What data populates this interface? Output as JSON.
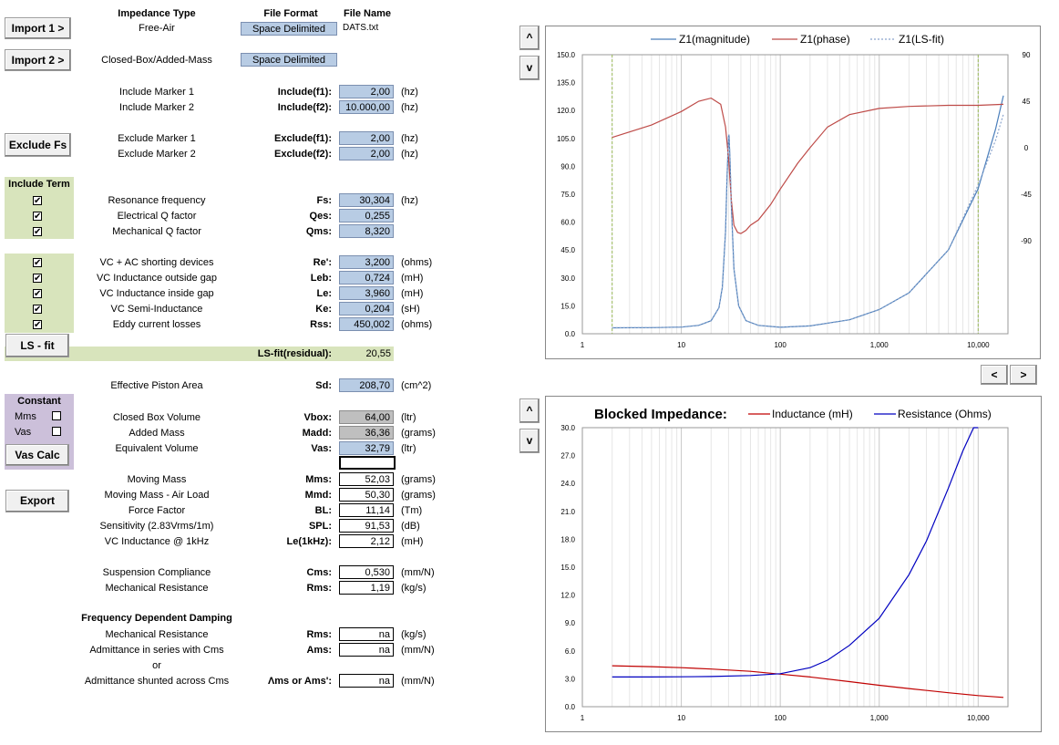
{
  "headers": {
    "impedance_type": "Impedance Type",
    "file_format": "File Format",
    "file_name": "File Name"
  },
  "import1": {
    "button": "Import 1 >",
    "type": "Free-Air",
    "format": "Space Delimited",
    "file": "DATS.txt"
  },
  "import2": {
    "button": "Import 2 >",
    "type": "Closed-Box/Added-Mass",
    "format": "Space Delimited"
  },
  "include_markers": [
    {
      "label": "Include Marker 1",
      "key": "Include(f1):",
      "value": "2,00",
      "unit": "(hz)"
    },
    {
      "label": "Include Marker 2",
      "key": "Include(f2):",
      "value": "10.000,00",
      "unit": "(hz)"
    }
  ],
  "exclude_button": "Exclude Fs",
  "exclude_markers": [
    {
      "label": "Exclude Marker 1",
      "key": "Exclude(f1):",
      "value": "2,00",
      "unit": "(hz)"
    },
    {
      "label": "Exclude Marker 2",
      "key": "Exclude(f2):",
      "value": "2,00",
      "unit": "(hz)"
    }
  ],
  "include_term_title": "Include Term",
  "params_a": [
    {
      "checked": true,
      "label": "Resonance frequency",
      "key": "Fs:",
      "value": "30,304",
      "unit": "(hz)"
    },
    {
      "checked": true,
      "label": "Electrical Q factor",
      "key": "Qes:",
      "value": "0,255",
      "unit": ""
    },
    {
      "checked": true,
      "label": "Mechanical Q factor",
      "key": "Qms:",
      "value": "8,320",
      "unit": ""
    }
  ],
  "params_b": [
    {
      "checked": true,
      "label": "VC + AC shorting devices",
      "key": "Re':",
      "value": "3,200",
      "unit": "(ohms)"
    },
    {
      "checked": true,
      "label": "VC Inductance outside gap",
      "key": "Leb:",
      "value": "0,724",
      "unit": "(mH)"
    },
    {
      "checked": true,
      "label": "VC Inductance inside gap",
      "key": "Le:",
      "value": "3,960",
      "unit": "(mH)"
    },
    {
      "checked": true,
      "label": "VC Semi-Inductance",
      "key": "Ke:",
      "value": "0,204",
      "unit": "(sH)"
    },
    {
      "checked": true,
      "label": "Eddy current losses",
      "key": "Rss:",
      "value": "450,002",
      "unit": "(ohms)"
    }
  ],
  "lsfit": {
    "button": "LS - fit",
    "key": "LS-fit(residual):",
    "value": "20,55"
  },
  "piston": {
    "label": "Effective Piston Area",
    "key": "Sd:",
    "value": "208,70",
    "unit": "(cm^2)"
  },
  "constant": {
    "title": "Constant",
    "mms": "Mms",
    "vas": "Vas",
    "button": "Vas Calc"
  },
  "box": [
    {
      "label": "Closed Box Volume",
      "key": "Vbox:",
      "value": "64,00",
      "unit": "(ltr)"
    },
    {
      "label": "Added Mass",
      "key": "Madd:",
      "value": "36,36",
      "unit": "(grams)"
    },
    {
      "label": "Equivalent Volume",
      "key": "Vas:",
      "value": "32,79",
      "unit": "(ltr)"
    }
  ],
  "export_button": "Export",
  "results": [
    {
      "label": "Moving Mass",
      "key": "Mms:",
      "value": "52,03",
      "unit": "(grams)"
    },
    {
      "label": "Moving Mass - Air Load",
      "key": "Mmd:",
      "value": "50,30",
      "unit": "(grams)"
    },
    {
      "label": "Force Factor",
      "key": "BL:",
      "value": "11,14",
      "unit": "(Tm)"
    },
    {
      "label": "Sensitivity (2.83Vrms/1m)",
      "key": "SPL:",
      "value": "91,53",
      "unit": "(dB)"
    },
    {
      "label": "VC Inductance @ 1kHz",
      "key": "Le(1kHz):",
      "value": "2,12",
      "unit": "(mH)"
    }
  ],
  "compliance": [
    {
      "label": "Suspension Compliance",
      "key": "Cms:",
      "value": "0,530",
      "unit": "(mm/N)"
    },
    {
      "label": "Mechanical Resistance",
      "key": "Rms:",
      "value": "1,19",
      "unit": "(kg/s)"
    }
  ],
  "damping": {
    "title": "Frequency Dependent Damping",
    "rows": [
      {
        "label": "Mechanical Resistance",
        "key": "Rms:",
        "value": "na",
        "unit": "(kg/s)"
      },
      {
        "label": "Admittance in series with Cms",
        "key": "Ams:",
        "value": "na",
        "unit": "(mm/N)"
      },
      {
        "label": "or",
        "key": "",
        "value": "",
        "unit": ""
      },
      {
        "label": "Admittance shunted across Cms",
        "key": "Λms or Ams':",
        "value": "na",
        "unit": "(mm/N)"
      }
    ]
  },
  "nav": {
    "up": "^",
    "down": "v",
    "left": "<",
    "right": ">"
  },
  "colors": {
    "magnitude": "#4a7ebb",
    "phase": "#be4b48",
    "inductance": "#c00000",
    "resistance": "#0000c0",
    "marker": "#9bbb59"
  },
  "chart_data": [
    {
      "type": "line",
      "title": "",
      "x_scale": "log",
      "xlim": [
        1,
        20000
      ],
      "x_ticks": [
        "1",
        "10",
        "100",
        "1,000",
        "10,000"
      ],
      "ylim": [
        0,
        150
      ],
      "y_ticks": [
        "0.0",
        "15.0",
        "30.0",
        "45.0",
        "60.0",
        "75.0",
        "90.0",
        "105.0",
        "120.0",
        "135.0",
        "150.0"
      ],
      "y2lim": [
        -180,
        90
      ],
      "y2_ticks": [
        "90",
        "45",
        "0",
        "-45",
        "-90"
      ],
      "legend": "top",
      "markers_x": [
        2,
        10000
      ],
      "series": [
        {
          "name": "Z1(magnitude)",
          "axis": "left",
          "x": [
            2,
            5,
            10,
            15,
            20,
            24,
            26,
            28,
            29,
            30,
            30.3,
            31,
            32,
            34,
            38,
            45,
            60,
            100,
            200,
            500,
            1000,
            2000,
            5000,
            10000,
            15000,
            18000
          ],
          "y": [
            3.2,
            3.3,
            3.6,
            4.5,
            7,
            14,
            25,
            55,
            85,
            106,
            107,
            95,
            70,
            35,
            15,
            7,
            4.5,
            3.5,
            4.2,
            7.5,
            13,
            22,
            45,
            78,
            110,
            128
          ]
        },
        {
          "name": "Z1(phase)",
          "axis": "right",
          "x": [
            2,
            5,
            10,
            15,
            20,
            25,
            28,
            30,
            32,
            34,
            37,
            40,
            45,
            50,
            60,
            80,
            100,
            150,
            200,
            300,
            500,
            1000,
            2000,
            5000,
            10000,
            18000
          ],
          "y": [
            10,
            22,
            35,
            45,
            48,
            42,
            20,
            -10,
            -50,
            -75,
            -82,
            -83,
            -80,
            -75,
            -70,
            -55,
            -40,
            -15,
            0,
            20,
            32,
            38,
            40,
            41,
            41,
            42
          ]
        },
        {
          "name": "Z1(LS-fit)",
          "axis": "left",
          "x": [
            2,
            5,
            10,
            15,
            20,
            24,
            26,
            28,
            29,
            30,
            30.3,
            31,
            32,
            34,
            38,
            45,
            60,
            100,
            200,
            500,
            1000,
            2000,
            5000,
            10000,
            15000,
            18000
          ],
          "y": [
            3.2,
            3.3,
            3.6,
            4.5,
            7,
            14,
            25,
            55,
            85,
            106,
            107,
            95,
            70,
            35,
            15,
            7,
            4.5,
            3.5,
            4.2,
            7.5,
            13,
            22,
            45,
            80,
            104,
            118
          ]
        }
      ]
    },
    {
      "type": "line",
      "title": "Blocked Impedance:",
      "x_scale": "log",
      "xlim": [
        1,
        20000
      ],
      "x_ticks": [
        "1",
        "10",
        "100",
        "1,000",
        "10,000"
      ],
      "ylim": [
        0,
        30
      ],
      "y_ticks": [
        "0.0",
        "3.0",
        "6.0",
        "9.0",
        "12.0",
        "15.0",
        "18.0",
        "21.0",
        "24.0",
        "27.0",
        "30.0"
      ],
      "legend": "top",
      "series": [
        {
          "name": "Inductance (mH)",
          "x": [
            2,
            5,
            10,
            20,
            50,
            100,
            200,
            500,
            1000,
            2000,
            5000,
            10000,
            18000
          ],
          "y": [
            4.4,
            4.3,
            4.2,
            4.05,
            3.8,
            3.5,
            3.2,
            2.7,
            2.3,
            1.95,
            1.5,
            1.2,
            1.0
          ]
        },
        {
          "name": "Resistance (Ohms)",
          "x": [
            2,
            5,
            10,
            20,
            50,
            100,
            200,
            300,
            500,
            1000,
            2000,
            3000,
            5000,
            7000,
            9000,
            10000
          ],
          "y": [
            3.2,
            3.2,
            3.22,
            3.25,
            3.35,
            3.55,
            4.2,
            5.0,
            6.6,
            9.5,
            14.2,
            17.8,
            23.5,
            27.5,
            30,
            30
          ]
        }
      ]
    }
  ]
}
